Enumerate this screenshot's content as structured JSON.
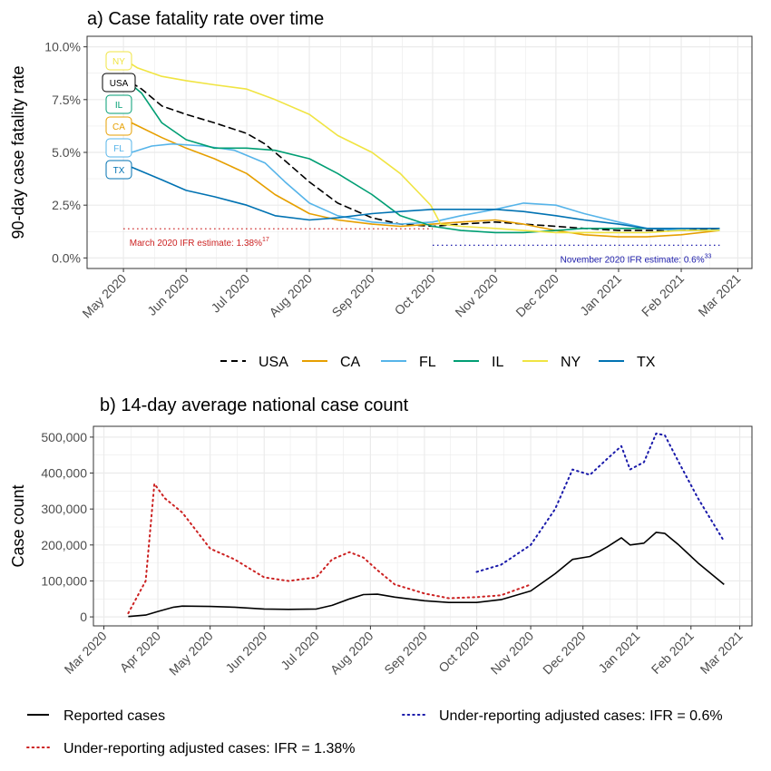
{
  "colors": {
    "USA": "#000000",
    "CA": "#E69F00",
    "FL": "#56B4E9",
    "IL": "#009E73",
    "NY": "#F0E442",
    "TX": "#0072B2",
    "reported": "#000000",
    "adj138": "#CC2222",
    "adj06": "#1A1AAA",
    "panel_bg": "#FFFFFF",
    "grid": "#EBEBEB",
    "border": "#333333"
  },
  "chart_data": [
    {
      "type": "line",
      "title": "a) Case fatality rate over time",
      "ylabel": "90-day case fatality rate",
      "xlabel": "",
      "xlim": [
        "2020-04-13",
        "2021-03-08"
      ],
      "ylim": [
        -0.005,
        0.105
      ],
      "yticks": [
        0,
        0.025,
        0.05,
        0.075,
        0.1
      ],
      "ytick_labels": [
        "0.0%",
        "2.5%",
        "5.0%",
        "7.5%",
        "10.0%"
      ],
      "xticks": [
        "2020-05-01",
        "2020-06-01",
        "2020-07-01",
        "2020-08-01",
        "2020-09-01",
        "2020-10-01",
        "2020-11-01",
        "2020-12-01",
        "2021-01-01",
        "2021-02-01",
        "2021-03-01"
      ],
      "xtick_labels": [
        "May 2020",
        "Jun 2020",
        "Jul 2020",
        "Aug 2020",
        "Sep 2020",
        "Oct 2020",
        "Nov 2020",
        "Dec 2020",
        "Jan 2021",
        "Feb 2021",
        "Mar 2021"
      ],
      "grid": true,
      "legend": "bottom",
      "legend_entries": [
        "USA",
        "CA",
        "FL",
        "IL",
        "NY",
        "TX"
      ],
      "labels": [
        "NY",
        "USA",
        "IL",
        "CA",
        "FL",
        "TX"
      ],
      "series": [
        {
          "name": "USA",
          "style": "dashed",
          "points": [
            [
              "2020-05-05",
              0.083
            ],
            [
              "2020-05-10",
              0.08
            ],
            [
              "2020-05-20",
              0.072
            ],
            [
              "2020-06-01",
              0.068
            ],
            [
              "2020-06-15",
              0.064
            ],
            [
              "2020-07-01",
              0.059
            ],
            [
              "2020-07-10",
              0.054
            ],
            [
              "2020-07-20",
              0.046
            ],
            [
              "2020-08-01",
              0.036
            ],
            [
              "2020-08-15",
              0.026
            ],
            [
              "2020-09-01",
              0.019
            ],
            [
              "2020-09-15",
              0.016
            ],
            [
              "2020-10-01",
              0.015
            ],
            [
              "2020-10-15",
              0.016
            ],
            [
              "2020-11-01",
              0.017
            ],
            [
              "2020-11-15",
              0.016
            ],
            [
              "2020-12-01",
              0.015
            ],
            [
              "2020-12-15",
              0.014
            ],
            [
              "2021-01-01",
              0.013
            ],
            [
              "2021-01-15",
              0.013
            ],
            [
              "2021-02-01",
              0.013
            ],
            [
              "2021-02-20",
              0.014
            ]
          ]
        },
        {
          "name": "CA",
          "style": "solid",
          "points": [
            [
              "2020-05-05",
              0.064
            ],
            [
              "2020-05-20",
              0.057
            ],
            [
              "2020-06-01",
              0.052
            ],
            [
              "2020-06-15",
              0.047
            ],
            [
              "2020-07-01",
              0.04
            ],
            [
              "2020-07-15",
              0.03
            ],
            [
              "2020-08-01",
              0.021
            ],
            [
              "2020-08-15",
              0.018
            ],
            [
              "2020-09-01",
              0.016
            ],
            [
              "2020-09-15",
              0.015
            ],
            [
              "2020-10-01",
              0.016
            ],
            [
              "2020-10-15",
              0.017
            ],
            [
              "2020-11-01",
              0.018
            ],
            [
              "2020-11-15",
              0.016
            ],
            [
              "2020-12-01",
              0.013
            ],
            [
              "2020-12-15",
              0.011
            ],
            [
              "2021-01-01",
              0.01
            ],
            [
              "2021-01-15",
              0.01
            ],
            [
              "2021-02-01",
              0.011
            ],
            [
              "2021-02-20",
              0.013
            ]
          ]
        },
        {
          "name": "FL",
          "style": "solid",
          "points": [
            [
              "2020-05-05",
              0.05
            ],
            [
              "2020-05-15",
              0.053
            ],
            [
              "2020-05-25",
              0.054
            ],
            [
              "2020-06-10",
              0.053
            ],
            [
              "2020-06-25",
              0.051
            ],
            [
              "2020-07-10",
              0.045
            ],
            [
              "2020-07-20",
              0.036
            ],
            [
              "2020-08-01",
              0.026
            ],
            [
              "2020-08-15",
              0.02
            ],
            [
              "2020-09-01",
              0.017
            ],
            [
              "2020-09-15",
              0.016
            ],
            [
              "2020-10-01",
              0.017
            ],
            [
              "2020-10-15",
              0.02
            ],
            [
              "2020-11-01",
              0.023
            ],
            [
              "2020-11-15",
              0.026
            ],
            [
              "2020-12-01",
              0.025
            ],
            [
              "2020-12-15",
              0.021
            ],
            [
              "2021-01-01",
              0.017
            ],
            [
              "2021-01-15",
              0.014
            ],
            [
              "2021-02-01",
              0.013
            ],
            [
              "2021-02-20",
              0.013
            ]
          ]
        },
        {
          "name": "IL",
          "style": "solid",
          "points": [
            [
              "2020-05-05",
              0.082
            ],
            [
              "2020-05-10",
              0.078
            ],
            [
              "2020-05-20",
              0.064
            ],
            [
              "2020-06-01",
              0.056
            ],
            [
              "2020-06-15",
              0.052
            ],
            [
              "2020-07-01",
              0.052
            ],
            [
              "2020-07-15",
              0.051
            ],
            [
              "2020-08-01",
              0.047
            ],
            [
              "2020-08-15",
              0.04
            ],
            [
              "2020-09-01",
              0.03
            ],
            [
              "2020-09-15",
              0.02
            ],
            [
              "2020-10-01",
              0.015
            ],
            [
              "2020-10-15",
              0.013
            ],
            [
              "2020-11-01",
              0.012
            ],
            [
              "2020-11-15",
              0.012
            ],
            [
              "2020-12-01",
              0.013
            ],
            [
              "2020-12-15",
              0.014
            ],
            [
              "2021-01-01",
              0.014
            ],
            [
              "2021-01-15",
              0.014
            ],
            [
              "2021-02-01",
              0.014
            ],
            [
              "2021-02-20",
              0.014
            ]
          ]
        },
        {
          "name": "NY",
          "style": "solid",
          "points": [
            [
              "2020-05-03",
              0.093
            ],
            [
              "2020-05-08",
              0.09
            ],
            [
              "2020-05-20",
              0.086
            ],
            [
              "2020-06-01",
              0.084
            ],
            [
              "2020-06-15",
              0.082
            ],
            [
              "2020-07-01",
              0.08
            ],
            [
              "2020-07-15",
              0.075
            ],
            [
              "2020-08-01",
              0.068
            ],
            [
              "2020-08-15",
              0.058
            ],
            [
              "2020-09-01",
              0.05
            ],
            [
              "2020-09-15",
              0.04
            ],
            [
              "2020-09-25",
              0.03
            ],
            [
              "2020-09-30",
              0.025
            ],
            [
              "2020-10-05",
              0.016
            ],
            [
              "2020-10-15",
              0.015
            ],
            [
              "2020-11-01",
              0.014
            ],
            [
              "2020-11-15",
              0.013
            ],
            [
              "2020-12-01",
              0.012
            ],
            [
              "2020-12-15",
              0.012
            ],
            [
              "2021-01-01",
              0.012
            ],
            [
              "2021-01-15",
              0.012
            ],
            [
              "2021-02-01",
              0.013
            ],
            [
              "2021-02-20",
              0.013
            ]
          ]
        },
        {
          "name": "TX",
          "style": "solid",
          "points": [
            [
              "2020-05-05",
              0.043
            ],
            [
              "2020-05-20",
              0.037
            ],
            [
              "2020-06-01",
              0.032
            ],
            [
              "2020-06-15",
              0.029
            ],
            [
              "2020-07-01",
              0.025
            ],
            [
              "2020-07-15",
              0.02
            ],
            [
              "2020-08-01",
              0.018
            ],
            [
              "2020-08-15",
              0.019
            ],
            [
              "2020-09-01",
              0.021
            ],
            [
              "2020-09-15",
              0.022
            ],
            [
              "2020-10-01",
              0.023
            ],
            [
              "2020-10-15",
              0.023
            ],
            [
              "2020-11-01",
              0.023
            ],
            [
              "2020-11-15",
              0.022
            ],
            [
              "2020-12-01",
              0.02
            ],
            [
              "2020-12-15",
              0.018
            ],
            [
              "2021-01-01",
              0.016
            ],
            [
              "2021-01-15",
              0.014
            ],
            [
              "2021-02-01",
              0.014
            ],
            [
              "2021-02-20",
              0.014
            ]
          ]
        }
      ],
      "reference_lines": [
        {
          "label": "March 2020 IFR estimate: 1.38%",
          "superscript": "17",
          "value": 0.0138,
          "x_start": "2020-05-01",
          "x_end": "2020-10-01",
          "color": "#CC2222"
        },
        {
          "label": "November 2020 IFR estimate: 0.6%",
          "superscript": "33",
          "value": 0.006,
          "x_start": "2020-10-01",
          "x_end": "2021-02-20",
          "color": "#1A1AAA"
        }
      ]
    },
    {
      "type": "line",
      "title": "b) 14-day average national case count",
      "ylabel": "Case count",
      "xlabel": "",
      "xlim": [
        "2020-02-24",
        "2021-03-08"
      ],
      "ylim": [
        -25000,
        530000
      ],
      "yticks": [
        0,
        100000,
        200000,
        300000,
        400000,
        500000
      ],
      "ytick_labels": [
        "0",
        "100,000",
        "200,000",
        "300,000",
        "400,000",
        "500,000"
      ],
      "xticks": [
        "2020-03-01",
        "2020-04-01",
        "2020-05-01",
        "2020-06-01",
        "2020-07-01",
        "2020-08-01",
        "2020-09-01",
        "2020-10-01",
        "2020-11-01",
        "2020-12-01",
        "2021-01-01",
        "2021-02-01",
        "2021-03-01"
      ],
      "xtick_labels": [
        "Mar 2020",
        "Apr 2020",
        "May 2020",
        "Jun 2020",
        "Jul 2020",
        "Aug 2020",
        "Sep 2020",
        "Oct 2020",
        "Nov 2020",
        "Dec 2020",
        "Jan 2021",
        "Feb 2021",
        "Mar 2021"
      ],
      "grid": true,
      "legend": "bottom",
      "series": [
        {
          "name": "Reported cases",
          "style": "solid",
          "points": [
            [
              "2020-03-15",
              1000
            ],
            [
              "2020-03-25",
              5000
            ],
            [
              "2020-04-01",
              15000
            ],
            [
              "2020-04-10",
              27000
            ],
            [
              "2020-04-15",
              30000
            ],
            [
              "2020-05-01",
              29000
            ],
            [
              "2020-05-15",
              27000
            ],
            [
              "2020-06-01",
              22000
            ],
            [
              "2020-06-15",
              21000
            ],
            [
              "2020-07-01",
              22000
            ],
            [
              "2020-07-10",
              32000
            ],
            [
              "2020-07-20",
              50000
            ],
            [
              "2020-07-28",
              62000
            ],
            [
              "2020-08-05",
              63000
            ],
            [
              "2020-08-15",
              55000
            ],
            [
              "2020-09-01",
              45000
            ],
            [
              "2020-09-15",
              40000
            ],
            [
              "2020-10-01",
              40000
            ],
            [
              "2020-10-15",
              48000
            ],
            [
              "2020-11-01",
              72000
            ],
            [
              "2020-11-15",
              120000
            ],
            [
              "2020-11-25",
              160000
            ],
            [
              "2020-12-05",
              168000
            ],
            [
              "2020-12-15",
              195000
            ],
            [
              "2020-12-23",
              220000
            ],
            [
              "2020-12-28",
              200000
            ],
            [
              "2021-01-05",
              205000
            ],
            [
              "2021-01-12",
              235000
            ],
            [
              "2021-01-17",
              232000
            ],
            [
              "2021-01-25",
              200000
            ],
            [
              "2021-02-05",
              150000
            ],
            [
              "2021-02-20",
              90000
            ]
          ]
        },
        {
          "name": "Under-reporting adjusted cases: IFR = 1.38%",
          "style": "dotted",
          "points": [
            [
              "2020-03-15",
              10000
            ],
            [
              "2020-03-25",
              100000
            ],
            [
              "2020-03-30",
              370000
            ],
            [
              "2020-04-05",
              330000
            ],
            [
              "2020-04-15",
              290000
            ],
            [
              "2020-05-01",
              190000
            ],
            [
              "2020-05-15",
              160000
            ],
            [
              "2020-06-01",
              110000
            ],
            [
              "2020-06-15",
              100000
            ],
            [
              "2020-07-01",
              110000
            ],
            [
              "2020-07-10",
              160000
            ],
            [
              "2020-07-20",
              180000
            ],
            [
              "2020-07-28",
              165000
            ],
            [
              "2020-08-05",
              130000
            ],
            [
              "2020-08-15",
              90000
            ],
            [
              "2020-09-01",
              65000
            ],
            [
              "2020-09-15",
              52000
            ],
            [
              "2020-10-01",
              55000
            ],
            [
              "2020-10-15",
              60000
            ],
            [
              "2020-11-01",
              90000
            ]
          ]
        },
        {
          "name": "Under-reporting adjusted cases: IFR = 0.6%",
          "style": "dotted",
          "points": [
            [
              "2020-10-01",
              125000
            ],
            [
              "2020-10-15",
              145000
            ],
            [
              "2020-11-01",
              200000
            ],
            [
              "2020-11-15",
              300000
            ],
            [
              "2020-11-25",
              410000
            ],
            [
              "2020-12-05",
              395000
            ],
            [
              "2020-12-15",
              440000
            ],
            [
              "2020-12-23",
              475000
            ],
            [
              "2020-12-28",
              410000
            ],
            [
              "2021-01-05",
              430000
            ],
            [
              "2021-01-12",
              510000
            ],
            [
              "2021-01-17",
              505000
            ],
            [
              "2021-01-25",
              430000
            ],
            [
              "2021-02-05",
              330000
            ],
            [
              "2021-02-20",
              210000
            ]
          ]
        }
      ]
    }
  ]
}
